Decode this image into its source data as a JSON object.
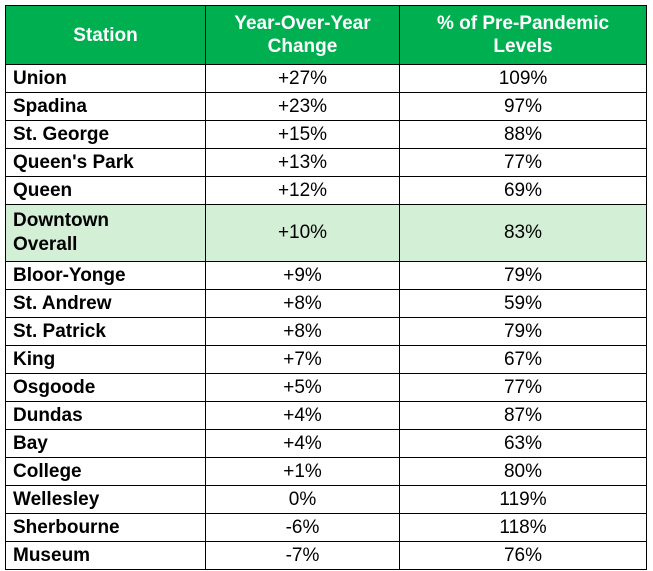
{
  "table": {
    "headers": {
      "station": "Station",
      "yoy_line1": "Year-Over-Year",
      "yoy_line2": "Change",
      "pct_line1": "% of Pre-Pandemic",
      "pct_line2": "Levels"
    },
    "highlight_color": "#d3efd6",
    "header_color": "#00b050",
    "rows": [
      {
        "station": "Union",
        "yoy": "+27%",
        "pct": "109%"
      },
      {
        "station": "Spadina",
        "yoy": "+23%",
        "pct": "97%"
      },
      {
        "station": "St. George",
        "yoy": "+15%",
        "pct": "88%"
      },
      {
        "station": "Queen's Park",
        "yoy": "+13%",
        "pct": "77%"
      },
      {
        "station": "Queen",
        "yoy": "+12%",
        "pct": "69%"
      },
      {
        "station_line1": "Downtown",
        "station_line2": "Overall",
        "yoy": "+10%",
        "pct": "83%",
        "highlighted": true
      },
      {
        "station": "Bloor-Yonge",
        "yoy": "+9%",
        "pct": "79%"
      },
      {
        "station": "St. Andrew",
        "yoy": "+8%",
        "pct": "59%"
      },
      {
        "station": "St. Patrick",
        "yoy": "+8%",
        "pct": "79%"
      },
      {
        "station": "King",
        "yoy": "+7%",
        "pct": "67%"
      },
      {
        "station": "Osgoode",
        "yoy": "+5%",
        "pct": "77%"
      },
      {
        "station": "Dundas",
        "yoy": "+4%",
        "pct": "87%"
      },
      {
        "station": "Bay",
        "yoy": "+4%",
        "pct": "63%"
      },
      {
        "station": "College",
        "yoy": "+1%",
        "pct": "80%"
      },
      {
        "station": "Wellesley",
        "yoy": "0%",
        "pct": "119%"
      },
      {
        "station": "Sherbourne",
        "yoy": "-6%",
        "pct": "118%"
      },
      {
        "station": "Museum",
        "yoy": "-7%",
        "pct": "76%"
      }
    ]
  }
}
